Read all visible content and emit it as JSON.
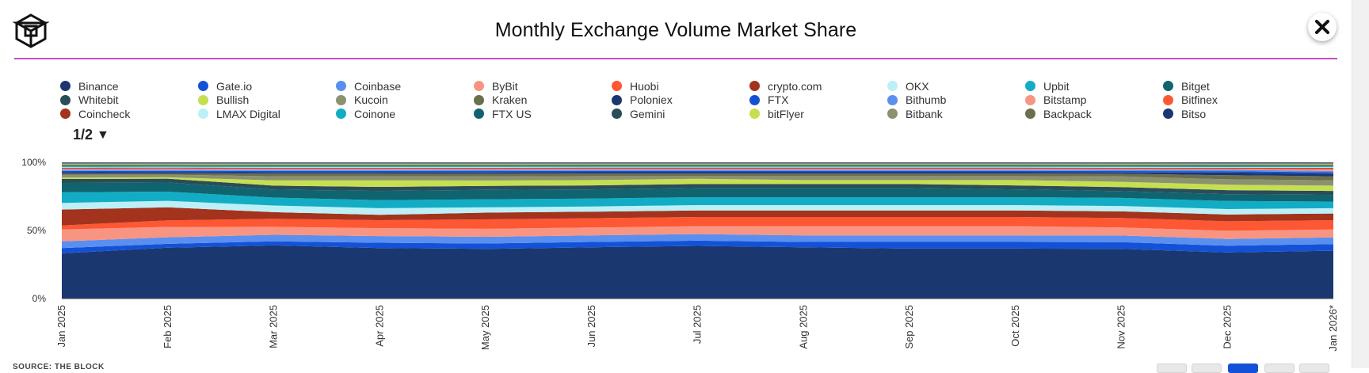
{
  "header": {
    "title": "Monthly Exchange Volume Market Share"
  },
  "icons": {
    "logo": "the-block-cube-logo-icon",
    "close": "close-icon"
  },
  "legend": {
    "page_label": "1/2",
    "page_arrow": "▼",
    "items": [
      {
        "name": "Binance",
        "color": "#1b3770"
      },
      {
        "name": "Gate.io",
        "color": "#1352d6"
      },
      {
        "name": "Coinbase",
        "color": "#5a8ff0"
      },
      {
        "name": "ByBit",
        "color": "#f79582"
      },
      {
        "name": "Huobi",
        "color": "#fe5733"
      },
      {
        "name": "crypto.com",
        "color": "#a3331c"
      },
      {
        "name": "OKX",
        "color": "#bdeff7"
      },
      {
        "name": "Upbit",
        "color": "#12adc5"
      },
      {
        "name": "Bitget",
        "color": "#0f6470"
      },
      {
        "name": "Whitebit",
        "color": "#2a4d59"
      },
      {
        "name": "Bullish",
        "color": "#c6df51"
      },
      {
        "name": "Kucoin",
        "color": "#8c9270"
      },
      {
        "name": "Kraken",
        "color": "#6b6f4b"
      },
      {
        "name": "Poloniex",
        "color": "#1b3770"
      },
      {
        "name": "FTX",
        "color": "#1352d6"
      },
      {
        "name": "Bithumb",
        "color": "#5a8ff0"
      },
      {
        "name": "Bitstamp",
        "color": "#f79582"
      },
      {
        "name": "Bitfinex",
        "color": "#fe5733"
      },
      {
        "name": "Coincheck",
        "color": "#a3331c"
      },
      {
        "name": "LMAX Digital",
        "color": "#bdeff7"
      },
      {
        "name": "Coinone",
        "color": "#12adc5"
      },
      {
        "name": "FTX US",
        "color": "#0f6470"
      },
      {
        "name": "Gemini",
        "color": "#2a4d59"
      },
      {
        "name": "bitFlyer",
        "color": "#c6df51"
      },
      {
        "name": "Bitbank",
        "color": "#8c9270"
      },
      {
        "name": "Backpack",
        "color": "#6b6f4b"
      },
      {
        "name": "Bitso",
        "color": "#1b3770"
      }
    ]
  },
  "footer": {
    "source_label": "SOURCE: THE BLOCK"
  },
  "chart_data": {
    "type": "area",
    "stacked": true,
    "normalized_percent": true,
    "title": "Monthly Exchange Volume Market Share",
    "x": [
      "Jan 2025",
      "Feb 2025",
      "Mar 2025",
      "Apr 2025",
      "May 2025",
      "Jun 2025",
      "Jul 2025",
      "Aug 2025",
      "Sep 2025",
      "Oct 2025",
      "Nov 2025",
      "Dec 2025",
      "Jan 2026*"
    ],
    "y_ticks": [
      "0%",
      "50%",
      "100%"
    ],
    "ylim": [
      0,
      100
    ],
    "grid": false,
    "legend_position": "top",
    "series": [
      {
        "name": "Binance",
        "color": "#1b3770",
        "values": [
          34,
          39,
          40,
          38,
          37,
          39,
          40,
          39,
          38,
          38,
          37,
          34,
          36
        ]
      },
      {
        "name": "Gate.io",
        "color": "#1352d6",
        "values": [
          4,
          3,
          3,
          4,
          4,
          4,
          4,
          4,
          5,
          5,
          5,
          5,
          5
        ]
      },
      {
        "name": "Coinbase",
        "color": "#5a8ff0",
        "values": [
          5,
          5,
          5,
          5,
          5,
          5,
          5,
          5,
          5,
          5,
          5,
          5,
          5
        ]
      },
      {
        "name": "ByBit",
        "color": "#f79582",
        "values": [
          9,
          8,
          6,
          6,
          6,
          6,
          6,
          7,
          7,
          7,
          6,
          6,
          6
        ]
      },
      {
        "name": "Huobi",
        "color": "#fe5733",
        "values": [
          3,
          5,
          6,
          6,
          7,
          7,
          7,
          7,
          7,
          7,
          7,
          7,
          7
        ]
      },
      {
        "name": "crypto.com",
        "color": "#a3331c",
        "values": [
          12,
          10,
          5,
          4,
          5,
          5,
          5,
          5,
          5,
          5,
          5,
          5,
          5
        ]
      },
      {
        "name": "OKX",
        "color": "#bdeff7",
        "values": [
          5,
          5,
          5,
          5,
          4,
          4,
          4,
          4,
          4,
          4,
          4,
          4,
          4
        ]
      },
      {
        "name": "Upbit",
        "color": "#12adc5",
        "values": [
          8,
          7,
          6,
          6,
          6,
          6,
          6,
          6,
          6,
          6,
          6,
          6,
          5
        ]
      },
      {
        "name": "Bitget",
        "color": "#0f6470",
        "values": [
          7,
          7,
          6,
          7,
          7,
          7,
          7,
          7,
          7,
          6,
          5,
          5,
          5
        ]
      },
      {
        "name": "Whitebit",
        "color": "#2a4d59",
        "values": [
          3,
          3,
          3,
          3,
          3,
          3,
          3,
          3,
          3,
          3,
          3,
          3,
          3
        ]
      },
      {
        "name": "Bullish",
        "color": "#c6df51",
        "values": [
          1,
          1,
          4,
          5,
          4,
          4,
          4,
          3,
          3,
          4,
          4,
          4,
          4
        ]
      },
      {
        "name": "Kucoin",
        "color": "#8c9270",
        "values": [
          2,
          2,
          3,
          3,
          3,
          3,
          2,
          3,
          3,
          3,
          4,
          4,
          4
        ]
      },
      {
        "name": "Kraken",
        "color": "#6b6f4b",
        "values": [
          1,
          1,
          2,
          2,
          2,
          2,
          2,
          2,
          2,
          2,
          2,
          3,
          3
        ]
      },
      {
        "name": "Poloniex",
        "color": "#1b3770",
        "values": [
          1,
          1,
          1,
          1,
          1,
          1,
          1,
          1,
          1,
          1,
          1,
          2,
          2
        ]
      },
      {
        "name": "FTX",
        "color": "#1352d6",
        "values": [
          1,
          1,
          1,
          1,
          1,
          1,
          1,
          1,
          1,
          1,
          1,
          1,
          1
        ]
      },
      {
        "name": "Bithumb",
        "color": "#5a8ff0",
        "values": [
          1,
          1,
          1,
          1,
          1,
          1,
          1,
          1,
          1,
          1,
          1,
          1,
          1
        ]
      },
      {
        "name": "Bitstamp",
        "color": "#f79582",
        "values": [
          0.5,
          0.5,
          0.5,
          0.5,
          0.5,
          0.5,
          0.5,
          0.5,
          0.5,
          0.5,
          0.5,
          0.5,
          1
        ]
      },
      {
        "name": "Bitfinex",
        "color": "#fe5733",
        "values": [
          0.5,
          0.5,
          0.5,
          0.5,
          0.5,
          0.5,
          0.5,
          0.5,
          0.5,
          0.5,
          0.5,
          0.5,
          1
        ]
      },
      {
        "name": "Coincheck",
        "color": "#a3331c",
        "values": [
          0.5,
          0.5,
          0.5,
          0.5,
          0.5,
          0.5,
          0.5,
          0.5,
          0.5,
          0.5,
          0.5,
          0.5,
          0.5
        ]
      },
      {
        "name": "LMAX Digital",
        "color": "#bdeff7",
        "values": [
          0.5,
          0.5,
          0.5,
          0.5,
          0.5,
          0.5,
          0.5,
          0.5,
          0.5,
          0.5,
          0.5,
          0.5,
          0.5
        ]
      },
      {
        "name": "Coinone",
        "color": "#12adc5",
        "values": [
          0.5,
          0.5,
          0.5,
          0.5,
          0.5,
          0.5,
          0.5,
          0.5,
          0.5,
          0.5,
          0.5,
          0.5,
          0.5
        ]
      },
      {
        "name": "FTX US",
        "color": "#0f6470",
        "values": [
          0.5,
          0.5,
          0.5,
          0.5,
          0.5,
          0.5,
          0.5,
          0.5,
          0.5,
          0.5,
          0.5,
          0.5,
          0.5
        ]
      },
      {
        "name": "Gemini",
        "color": "#2a4d59",
        "values": [
          0.5,
          0.5,
          0.5,
          0.5,
          0.5,
          0.5,
          0.5,
          0.5,
          0.5,
          0.5,
          0.5,
          0.5,
          0.5
        ]
      },
      {
        "name": "bitFlyer",
        "color": "#c6df51",
        "values": [
          0.5,
          0.5,
          0.5,
          0.5,
          0.5,
          0.5,
          0.5,
          0.5,
          0.5,
          0.5,
          0.5,
          0.5,
          0.5
        ]
      },
      {
        "name": "Bitbank",
        "color": "#8c9270",
        "values": [
          0.5,
          0.5,
          0.5,
          0.5,
          0.5,
          0.5,
          0.5,
          0.5,
          0.5,
          0.5,
          0.5,
          0.5,
          0.5
        ]
      },
      {
        "name": "Backpack",
        "color": "#6b6f4b",
        "values": [
          0.5,
          0.5,
          0.5,
          0.5,
          0.5,
          0.5,
          0.5,
          0.5,
          0.5,
          0.5,
          0.5,
          0.5,
          0.5
        ]
      },
      {
        "name": "Bitso",
        "color": "#1b3770",
        "values": [
          0.5,
          0.5,
          0.5,
          0.5,
          0.5,
          0.5,
          0.5,
          0.5,
          0.5,
          0.5,
          0.5,
          0.5,
          0.5
        ]
      }
    ]
  }
}
